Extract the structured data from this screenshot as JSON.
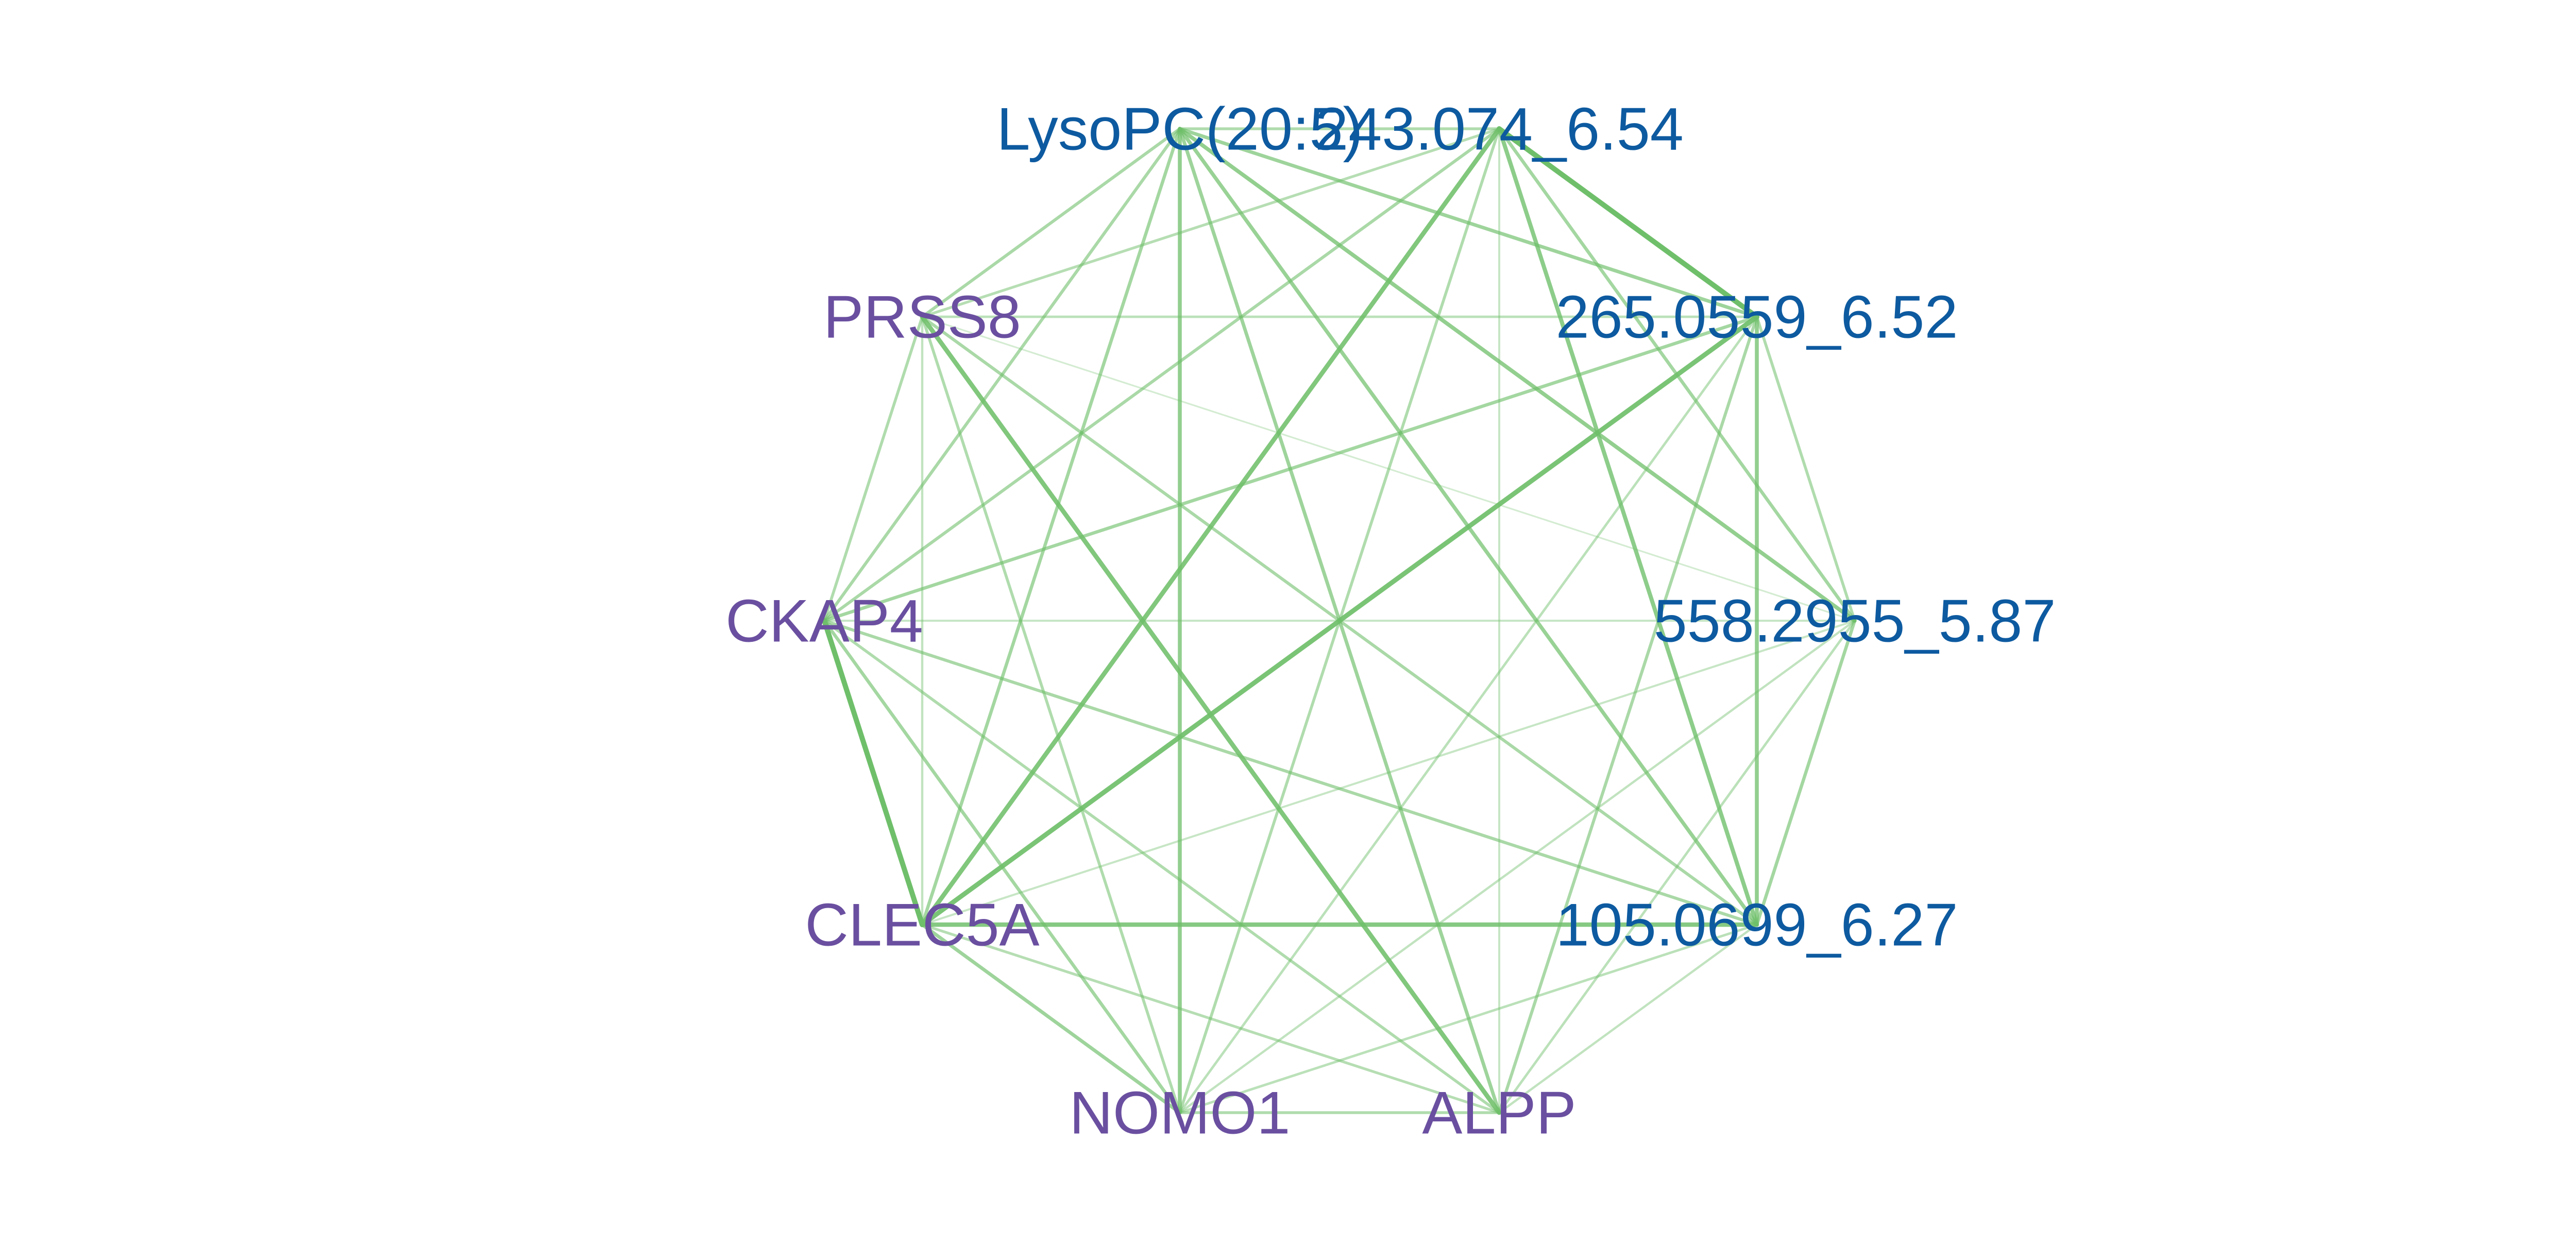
{
  "colors": {
    "metabolite_label": "#0d5aa0",
    "protein_label": "#6a4fa0",
    "edge": "#6fbf6a",
    "background": "#ffffff"
  },
  "nodes": [
    {
      "id": "lysopc",
      "label": "LysoPC(20:5)",
      "group": "metabolite"
    },
    {
      "id": "m243",
      "label": "243.074_6.54",
      "group": "metabolite"
    },
    {
      "id": "m265",
      "label": "265.0559_6.52",
      "group": "metabolite"
    },
    {
      "id": "m558",
      "label": "558.2955_5.87",
      "group": "metabolite"
    },
    {
      "id": "m105",
      "label": "105.0699_6.27",
      "group": "metabolite"
    },
    {
      "id": "alpp",
      "label": "ALPP",
      "group": "protein"
    },
    {
      "id": "nomo1",
      "label": "NOMO1",
      "group": "protein"
    },
    {
      "id": "clec5a",
      "label": "CLEC5A",
      "group": "protein"
    },
    {
      "id": "ckap4",
      "label": "CKAP4",
      "group": "protein"
    },
    {
      "id": "prss8",
      "label": "PRSS8",
      "group": "protein"
    }
  ],
  "edges": [
    {
      "source": "lysopc",
      "target": "m243",
      "weight": 0.45
    },
    {
      "source": "lysopc",
      "target": "m265",
      "weight": 0.6
    },
    {
      "source": "lysopc",
      "target": "m558",
      "weight": 0.7
    },
    {
      "source": "lysopc",
      "target": "m105",
      "weight": 0.65
    },
    {
      "source": "lysopc",
      "target": "alpp",
      "weight": 0.6
    },
    {
      "source": "lysopc",
      "target": "nomo1",
      "weight": 0.7
    },
    {
      "source": "lysopc",
      "target": "clec5a",
      "weight": 0.55
    },
    {
      "source": "lysopc",
      "target": "ckap4",
      "weight": 0.5
    },
    {
      "source": "lysopc",
      "target": "prss8",
      "weight": 0.5
    },
    {
      "source": "m243",
      "target": "m265",
      "weight": 1.0
    },
    {
      "source": "m243",
      "target": "m558",
      "weight": 0.55
    },
    {
      "source": "m243",
      "target": "m105",
      "weight": 0.75
    },
    {
      "source": "m243",
      "target": "alpp",
      "weight": 0.25
    },
    {
      "source": "m243",
      "target": "nomo1",
      "weight": 0.45
    },
    {
      "source": "m243",
      "target": "clec5a",
      "weight": 0.85
    },
    {
      "source": "m243",
      "target": "ckap4",
      "weight": 0.5
    },
    {
      "source": "m243",
      "target": "prss8",
      "weight": 0.4
    },
    {
      "source": "m265",
      "target": "m558",
      "weight": 0.45
    },
    {
      "source": "m265",
      "target": "m105",
      "weight": 0.7
    },
    {
      "source": "m265",
      "target": "alpp",
      "weight": 0.5
    },
    {
      "source": "m265",
      "target": "nomo1",
      "weight": 0.35
    },
    {
      "source": "m265",
      "target": "clec5a",
      "weight": 0.9
    },
    {
      "source": "m265",
      "target": "ckap4",
      "weight": 0.55
    },
    {
      "source": "m265",
      "target": "prss8",
      "weight": 0.35
    },
    {
      "source": "m558",
      "target": "m105",
      "weight": 0.55
    },
    {
      "source": "m558",
      "target": "alpp",
      "weight": 0.35
    },
    {
      "source": "m558",
      "target": "nomo1",
      "weight": 0.3
    },
    {
      "source": "m558",
      "target": "clec5a",
      "weight": 0.25
    },
    {
      "source": "m558",
      "target": "ckap4",
      "weight": 0.25
    },
    {
      "source": "m558",
      "target": "prss8",
      "weight": 0.15
    },
    {
      "source": "m105",
      "target": "alpp",
      "weight": 0.3
    },
    {
      "source": "m105",
      "target": "nomo1",
      "weight": 0.35
    },
    {
      "source": "m105",
      "target": "clec5a",
      "weight": 0.8
    },
    {
      "source": "m105",
      "target": "ckap4",
      "weight": 0.5
    },
    {
      "source": "m105",
      "target": "prss8",
      "weight": 0.5
    },
    {
      "source": "alpp",
      "target": "nomo1",
      "weight": 0.45
    },
    {
      "source": "alpp",
      "target": "clec5a",
      "weight": 0.4
    },
    {
      "source": "alpp",
      "target": "ckap4",
      "weight": 0.45
    },
    {
      "source": "alpp",
      "target": "prss8",
      "weight": 0.85
    },
    {
      "source": "nomo1",
      "target": "clec5a",
      "weight": 0.6
    },
    {
      "source": "nomo1",
      "target": "ckap4",
      "weight": 0.55
    },
    {
      "source": "nomo1",
      "target": "prss8",
      "weight": 0.45
    },
    {
      "source": "clec5a",
      "target": "ckap4",
      "weight": 1.0
    },
    {
      "source": "clec5a",
      "target": "prss8",
      "weight": 0.3
    },
    {
      "source": "ckap4",
      "target": "prss8",
      "weight": 0.45
    }
  ]
}
